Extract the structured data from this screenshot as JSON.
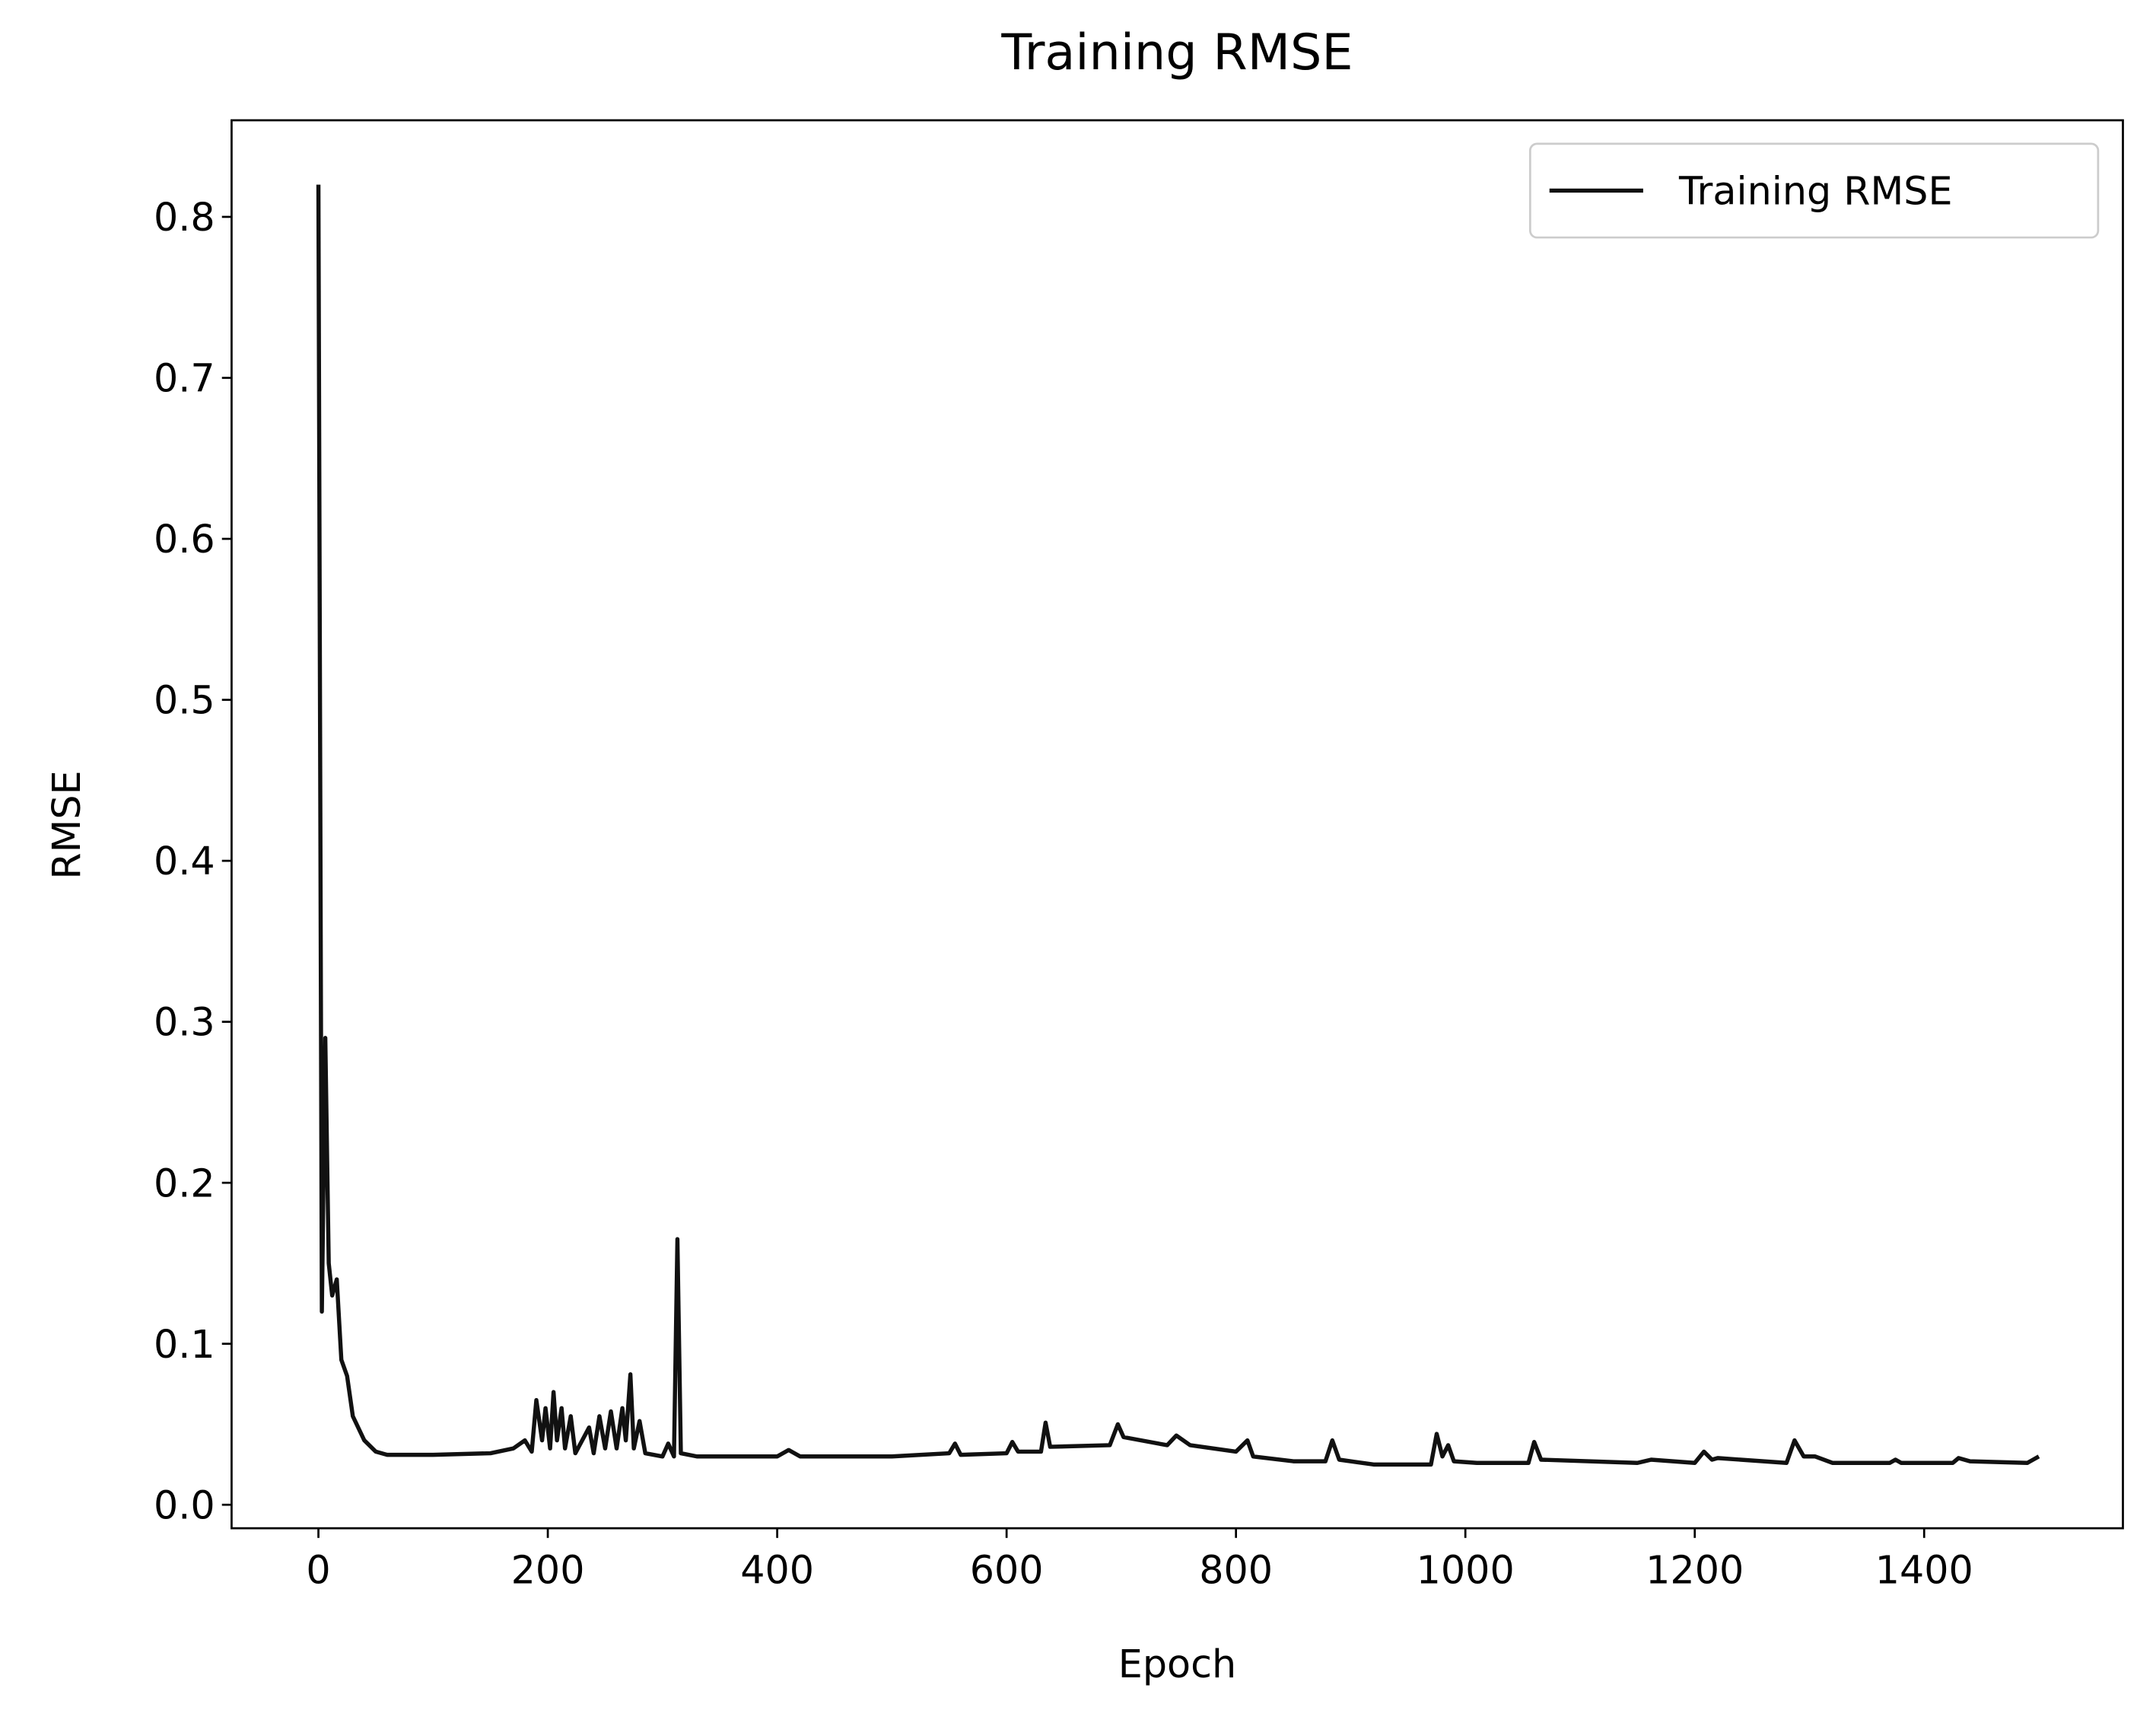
{
  "chart_data": {
    "type": "line",
    "title": "Training RMSE",
    "xlabel": "Epoch",
    "ylabel": "RMSE",
    "x": [
      0,
      3,
      6,
      9,
      12,
      16,
      20,
      25,
      30,
      40,
      50,
      60,
      100,
      150,
      170,
      180,
      186,
      190,
      195,
      198,
      202,
      205,
      208,
      212,
      215,
      220,
      224,
      230,
      236,
      240,
      245,
      250,
      255,
      260,
      265,
      268,
      272,
      275,
      280,
      285,
      300,
      305,
      310,
      313,
      316,
      330,
      400,
      410,
      420,
      500,
      550,
      555,
      560,
      600,
      605,
      610,
      630,
      634,
      638,
      690,
      697,
      702,
      740,
      748,
      760,
      800,
      810,
      815,
      850,
      878,
      884,
      890,
      920,
      970,
      975,
      980,
      985,
      990,
      1010,
      1055,
      1060,
      1066,
      1150,
      1162,
      1200,
      1208,
      1215,
      1220,
      1280,
      1287,
      1295,
      1305,
      1320,
      1370,
      1375,
      1380,
      1425,
      1430,
      1440,
      1490,
      1500
    ],
    "series": [
      {
        "name": "Training RMSE",
        "color": "#111111",
        "values": [
          0.82,
          0.12,
          0.29,
          0.15,
          0.13,
          0.14,
          0.09,
          0.08,
          0.055,
          0.04,
          0.033,
          0.031,
          0.031,
          0.032,
          0.035,
          0.04,
          0.033,
          0.065,
          0.04,
          0.06,
          0.035,
          0.07,
          0.04,
          0.06,
          0.035,
          0.055,
          0.032,
          0.04,
          0.048,
          0.032,
          0.055,
          0.035,
          0.058,
          0.035,
          0.06,
          0.04,
          0.081,
          0.035,
          0.052,
          0.032,
          0.03,
          0.038,
          0.03,
          0.165,
          0.032,
          0.03,
          0.03,
          0.034,
          0.03,
          0.03,
          0.032,
          0.038,
          0.031,
          0.032,
          0.039,
          0.033,
          0.033,
          0.051,
          0.036,
          0.037,
          0.05,
          0.042,
          0.037,
          0.043,
          0.037,
          0.033,
          0.04,
          0.03,
          0.027,
          0.027,
          0.04,
          0.028,
          0.025,
          0.025,
          0.044,
          0.03,
          0.037,
          0.027,
          0.026,
          0.026,
          0.039,
          0.028,
          0.026,
          0.028,
          0.026,
          0.033,
          0.028,
          0.029,
          0.026,
          0.04,
          0.03,
          0.03,
          0.026,
          0.026,
          0.028,
          0.026,
          0.026,
          0.029,
          0.027,
          0.026,
          0.03
        ]
      }
    ],
    "xlim": [
      -75.7,
      1573.3
    ],
    "ylim": [
      -0.0146,
      0.86
    ],
    "xticks": [
      0,
      200,
      400,
      600,
      800,
      1000,
      1200,
      1400
    ],
    "yticks": [
      {
        "value": 0,
        "label": "0.0"
      },
      0.1,
      0.2,
      0.3,
      0.4,
      0.5,
      0.6,
      0.7,
      0.8
    ],
    "legend": "upper right"
  }
}
